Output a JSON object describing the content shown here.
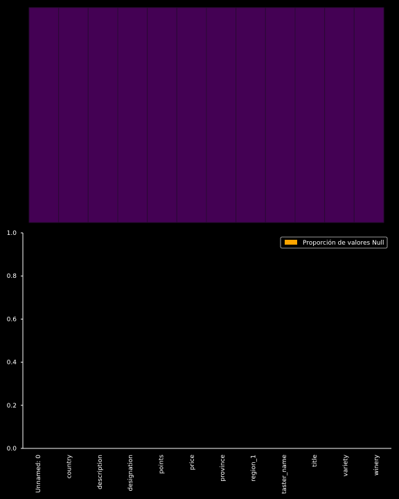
{
  "chart_data": [
    {
      "type": "heatmap",
      "categories": [
        "Unnamed: 0",
        "country",
        "description",
        "designation",
        "points",
        "price",
        "province",
        "region_1",
        "taster_name",
        "title",
        "variety",
        "winery"
      ],
      "values": [
        0,
        0,
        0,
        0,
        0,
        0,
        0,
        0,
        0,
        0,
        0,
        0
      ],
      "cell_color": "#440154",
      "background": "#000000"
    },
    {
      "type": "bar",
      "categories": [
        "Unnamed: 0",
        "country",
        "description",
        "designation",
        "points",
        "price",
        "province",
        "region_1",
        "taster_name",
        "title",
        "variety",
        "winery"
      ],
      "series": [
        {
          "name": "Proporción de valores Null",
          "values": [
            0,
            0,
            0,
            0,
            0,
            0,
            0,
            0,
            0,
            0,
            0,
            0
          ],
          "color": "#ffa500"
        }
      ],
      "ylim": [
        0,
        1
      ],
      "yticks": [
        "0.0",
        "0.2",
        "0.4",
        "0.6",
        "0.8",
        "1.0"
      ],
      "xlabel": "",
      "ylabel": "",
      "legend_position": "top-right",
      "grid": false
    }
  ]
}
